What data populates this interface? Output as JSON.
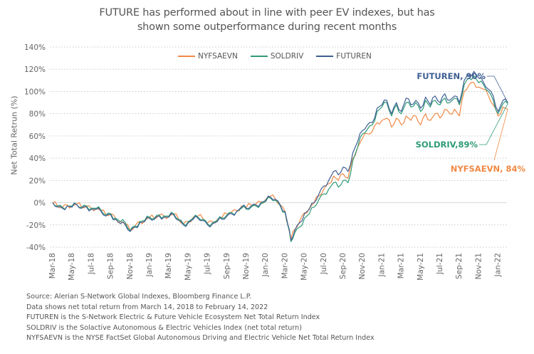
{
  "title_line1": "FUTURE has performed about in line with peer EV indexes, but has",
  "title_line2": "shown some outperformance during recent months",
  "colors": {
    "FUTUREN": "#3f5f93",
    "SOLDRIV": "#2f9a78",
    "NYFSAEVN": "#f08a45",
    "grid": "#c8c8c8",
    "zero_line": "#dcdcdc"
  },
  "legend": [
    {
      "name": "NYFSAEVN",
      "color": "#f08a45"
    },
    {
      "name": "SOLDRIV",
      "color": "#2f9a78"
    },
    {
      "name": "FUTUREN",
      "color": "#3f5f93"
    }
  ],
  "annotations": [
    {
      "series": "FUTUREN",
      "text": "FUTUREN, 90%"
    },
    {
      "series": "SOLDRIV",
      "text": "SOLDRIV,89%"
    },
    {
      "series": "NYFSAEVN",
      "text": "NYFSAEVN, 84%"
    }
  ],
  "footnotes": [
    "Source: Alerian S-Network Global Indexes, Bloomberg Finance L.P.",
    "Data shows net total return from March 14, 2018 to February 14, 2022",
    "FUTUREN is the S-Network Electric & Future Vehicle Ecosystem Net Total Return Index",
    "SOLDRIV is the Solactive Autonomous & Electric Vehicles Index (net total return)",
    "NYFSAEVN is the NYSE FactSet Global Autonomous Driving and Electric Vehicle Net Total Return Index"
  ],
  "chart_data": {
    "type": "line",
    "title": "FUTURE has performed about in line with peer EV indexes, but has shown some outperformance during recent months",
    "xlabel": "",
    "ylabel": "Net Total Retrun (%)",
    "ylim": [
      -40,
      140
    ],
    "yticks": [
      140,
      120,
      100,
      80,
      60,
      40,
      20,
      0,
      -20,
      -40
    ],
    "ytick_labels": [
      "140%",
      "120%",
      "100%",
      "80%",
      "60%",
      "40%",
      "20%",
      "0%",
      "-20%",
      "-40%"
    ],
    "xtick_labels": [
      "Mar-18",
      "May-18",
      "Jul-18",
      "Sep-18",
      "Nov-18",
      "Jan-19",
      "Mar-19",
      "May-19",
      "Jul-19",
      "Sep-19",
      "Nov-19",
      "Jan-20",
      "Mar-20",
      "May-20",
      "Jul-20",
      "Sep-20",
      "Nov-20",
      "Jan-21",
      "Mar-21",
      "May-21",
      "Jul-21",
      "Sep-21",
      "Nov-21",
      "Jan-22"
    ],
    "grid": "horizontal-dotted",
    "legend_position": "top-center",
    "x_months": [
      0,
      0.5,
      1,
      1.5,
      2,
      2.5,
      3,
      3.5,
      4,
      4.5,
      5,
      5.5,
      6,
      6.5,
      7,
      7.5,
      8,
      8.5,
      9,
      9.5,
      10,
      10.5,
      11,
      11.5,
      12,
      12.5,
      13,
      13.5,
      14,
      14.5,
      15,
      15.5,
      16,
      16.5,
      17,
      17.5,
      18,
      18.5,
      19,
      19.5,
      20,
      20.5,
      21,
      21.5,
      22,
      22.5,
      23,
      23.5,
      24,
      24.3,
      24.6,
      25,
      25.5,
      26,
      26.5,
      27,
      27.5,
      28,
      28.5,
      29,
      29.5,
      30,
      30.5,
      31,
      31.5,
      32,
      32.5,
      33,
      33.5,
      34,
      34.5,
      35,
      35.5,
      36,
      36.5,
      37,
      37.5,
      38,
      38.5,
      39,
      39.5,
      40,
      40.5,
      41,
      41.5,
      42,
      42.5,
      43,
      43.5,
      44,
      44.5,
      45,
      45.5,
      46,
      46.5,
      47
    ],
    "series": [
      {
        "name": "FUTUREN",
        "values": [
          0,
          -4,
          -5,
          -3,
          -4,
          -2,
          -5,
          -4,
          -6,
          -6,
          -8,
          -12,
          -11,
          -15,
          -19,
          -20,
          -26,
          -22,
          -18,
          -17,
          -14,
          -15,
          -12,
          -13,
          -13,
          -11,
          -16,
          -20,
          -18,
          -15,
          -14,
          -16,
          -20,
          -19,
          -17,
          -15,
          -12,
          -10,
          -8,
          -4,
          -5,
          -3,
          -2,
          0,
          2,
          5,
          3,
          -2,
          -8,
          -20,
          -34,
          -25,
          -18,
          -10,
          -6,
          0,
          8,
          15,
          20,
          28,
          25,
          32,
          28,
          45,
          55,
          65,
          70,
          72,
          85,
          88,
          92,
          80,
          90,
          82,
          94,
          88,
          92,
          85,
          95,
          88,
          96,
          90,
          98,
          92,
          96,
          90,
          110,
          115,
          118,
          112,
          108,
          102,
          96,
          82,
          92,
          90
        ]
      },
      {
        "name": "SOLDRIV",
        "values": [
          0,
          -3,
          -4,
          -3,
          -3,
          -2,
          -4,
          -3,
          -5,
          -5,
          -7,
          -11,
          -10,
          -14,
          -17,
          -18,
          -25,
          -21,
          -17,
          -16,
          -13,
          -14,
          -11,
          -12,
          -12,
          -10,
          -15,
          -19,
          -17,
          -14,
          -13,
          -15,
          -19,
          -18,
          -16,
          -14,
          -11,
          -9,
          -8,
          -5,
          -6,
          -4,
          -3,
          -1,
          1,
          4,
          2,
          -3,
          -9,
          -21,
          -35,
          -27,
          -22,
          -14,
          -10,
          -4,
          3,
          8,
          12,
          18,
          14,
          20,
          18,
          38,
          50,
          62,
          66,
          70,
          82,
          86,
          90,
          78,
          88,
          80,
          90,
          86,
          90,
          82,
          92,
          86,
          92,
          88,
          94,
          90,
          94,
          88,
          106,
          112,
          114,
          108,
          106,
          100,
          92,
          80,
          89,
          89
        ]
      },
      {
        "name": "NYFSAEVN",
        "values": [
          0,
          -3,
          -4,
          -2,
          -3,
          -1,
          -4,
          -3,
          -5,
          -5,
          -7,
          -11,
          -10,
          -14,
          -17,
          -19,
          -25,
          -21,
          -17,
          -16,
          -13,
          -14,
          -11,
          -12,
          -12,
          -10,
          -15,
          -19,
          -17,
          -13,
          -12,
          -14,
          -18,
          -17,
          -15,
          -13,
          -10,
          -8,
          -7,
          -3,
          -4,
          -2,
          -1,
          1,
          3,
          6,
          3,
          -2,
          -8,
          -20,
          -33,
          -24,
          -17,
          -9,
          -5,
          0,
          6,
          12,
          17,
          24,
          20,
          26,
          22,
          40,
          50,
          58,
          62,
          64,
          72,
          74,
          76,
          68,
          76,
          70,
          78,
          74,
          78,
          70,
          80,
          74,
          80,
          76,
          84,
          80,
          84,
          78,
          100,
          106,
          108,
          104,
          102,
          96,
          88,
          78,
          86,
          84
        ]
      }
    ]
  }
}
